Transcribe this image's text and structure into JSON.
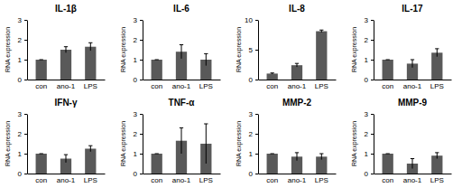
{
  "chart_data": [
    {
      "type": "bar",
      "title": "IL-1β",
      "y_label": "RNA expression",
      "categories": [
        "con",
        "ano-1",
        "LPS"
      ],
      "values": [
        1,
        1.5,
        1.65
      ],
      "errors": [
        0,
        0.15,
        0.2
      ],
      "color": "#595959",
      "ylim": [
        0,
        3
      ],
      "yticks": [
        0,
        1,
        2,
        3
      ]
    },
    {
      "type": "bar",
      "title": "IL-6",
      "y_label": "RNA expression",
      "categories": [
        "con",
        "ano-1",
        "LPS"
      ],
      "values": [
        1,
        1.4,
        1.0
      ],
      "errors": [
        0,
        0.35,
        0.3
      ],
      "color": "#595959",
      "ylim": [
        0,
        3
      ],
      "yticks": [
        0,
        1,
        2,
        3
      ]
    },
    {
      "type": "bar",
      "title": "IL-8",
      "y_label": "RNA expression",
      "categories": [
        "con",
        "ano-1",
        "LPS"
      ],
      "values": [
        1,
        2.4,
        8.1
      ],
      "errors": [
        0.1,
        0.3,
        0.2
      ],
      "color": "#595959",
      "ylim": [
        0,
        10
      ],
      "yticks": [
        0,
        5,
        10
      ]
    },
    {
      "type": "bar",
      "title": "IL-17",
      "y_label": "RNA expression",
      "categories": [
        "con",
        "ano-1",
        "LPS"
      ],
      "values": [
        1,
        0.8,
        1.35
      ],
      "errors": [
        0,
        0.2,
        0.2
      ],
      "color": "#595959",
      "ylim": [
        0,
        3
      ],
      "yticks": [
        0,
        1,
        2,
        3
      ]
    },
    {
      "type": "bar",
      "title": "IFN-γ",
      "y_label": "RNA expression",
      "categories": [
        "con",
        "ano-1",
        "LPS"
      ],
      "values": [
        1,
        0.75,
        1.25
      ],
      "errors": [
        0,
        0.2,
        0.15
      ],
      "color": "#595959",
      "ylim": [
        0,
        3
      ],
      "yticks": [
        0,
        1,
        2,
        3
      ]
    },
    {
      "type": "bar",
      "title": "TNF-α",
      "y_label": "RNA expression",
      "categories": [
        "con",
        "ano-1",
        "LPS"
      ],
      "values": [
        1,
        1.65,
        1.5
      ],
      "errors": [
        0,
        0.65,
        1.0
      ],
      "color": "#595959",
      "ylim": [
        0,
        3
      ],
      "yticks": [
        0,
        1,
        2,
        3
      ]
    },
    {
      "type": "bar",
      "title": "MMP-2",
      "y_label": "RNA expression",
      "categories": [
        "con",
        "ano-1",
        "LPS"
      ],
      "values": [
        1,
        0.85,
        0.85
      ],
      "errors": [
        0,
        0.2,
        0.15
      ],
      "color": "#595959",
      "ylim": [
        0,
        3
      ],
      "yticks": [
        0,
        1,
        2,
        3
      ]
    },
    {
      "type": "bar",
      "title": "MMP-9",
      "y_label": "RNA expression",
      "categories": [
        "con",
        "ano-1",
        "LPS"
      ],
      "values": [
        1,
        0.5,
        0.9
      ],
      "errors": [
        0,
        0.25,
        0.15
      ],
      "color": "#595959",
      "ylim": [
        0,
        3
      ],
      "yticks": [
        0,
        1,
        2,
        3
      ]
    }
  ]
}
